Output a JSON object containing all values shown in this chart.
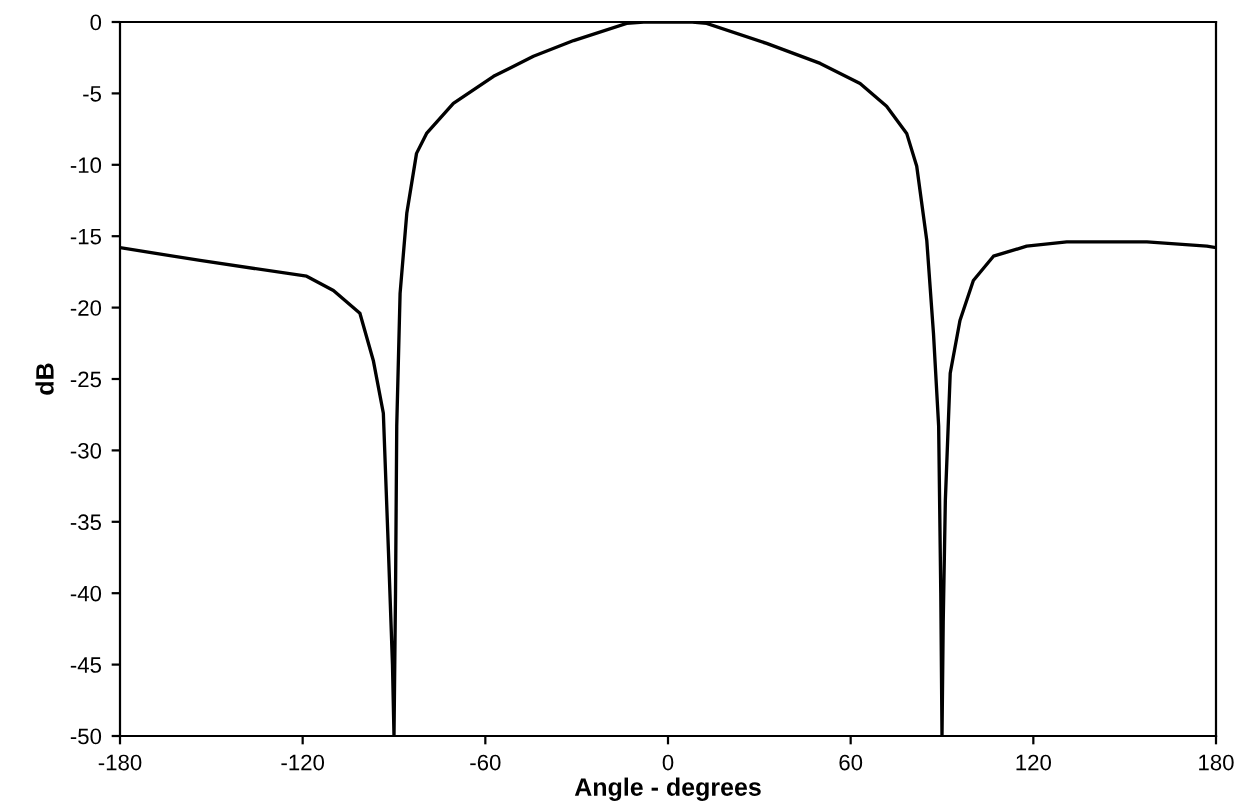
{
  "chart_data": {
    "type": "line",
    "xlabel": "Angle - degrees",
    "ylabel": "dB",
    "xlim": [
      -180,
      180
    ],
    "xticks": [
      -180,
      -120,
      -60,
      0,
      60,
      120,
      180
    ],
    "ylim": [
      -50,
      0
    ],
    "yticks": [
      0,
      -5,
      -10,
      -15,
      -20,
      -25,
      -30,
      -35,
      -40,
      -45,
      -50
    ],
    "grid": false,
    "legend": false,
    "marker": "none",
    "line_style": "solid",
    "series": [
      {
        "color": "#000000",
        "x": [
          -180,
          -153.7,
          -118.7,
          -109.9,
          -101.2,
          -96.8,
          -93.5,
          -91.8,
          -90.5,
          -90,
          -89.5,
          -89.1,
          -88,
          -85.8,
          -82.6,
          -79.3,
          -70.5,
          -57.3,
          -44.2,
          -31,
          -13.6,
          -8,
          0,
          8,
          12.7,
          32.4,
          50,
          63.1,
          71.8,
          78.4,
          81.7,
          85,
          87.2,
          88.9,
          89.6,
          90,
          90.4,
          91.1,
          92.7,
          95.9,
          100.3,
          106.9,
          117.8,
          131,
          157.3,
          177,
          180
        ],
        "values": [
          -15.8,
          -16.7,
          -17.8,
          -18.8,
          -20.4,
          -23.7,
          -27.4,
          -37.2,
          -45,
          -50,
          -40,
          -28.3,
          -19,
          -13.4,
          -9.2,
          -7.8,
          -5.7,
          -3.8,
          -2.4,
          -1.3,
          -0.1,
          0,
          0,
          0,
          -0.1,
          -1.5,
          -2.9,
          -4.3,
          -5.9,
          -7.8,
          -10.1,
          -15.3,
          -21.8,
          -28.3,
          -40,
          -50,
          -42,
          -33.5,
          -24.6,
          -20.9,
          -18.1,
          -16.4,
          -15.7,
          -15.4,
          -15.4,
          -15.7,
          -15.8
        ]
      }
    ]
  }
}
